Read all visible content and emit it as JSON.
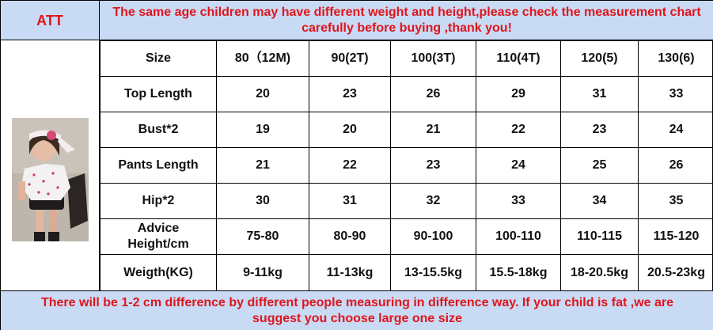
{
  "header": {
    "brand": "ATT",
    "notice": "The same age children may have different weight and height,please check the measurement chart carefully before buying ,thank you!"
  },
  "table": {
    "columns": [
      "Size",
      "80（12M)",
      "90(2T)",
      "100(3T)",
      "110(4T)",
      "120(5)",
      "130(6)"
    ],
    "rows": [
      {
        "label": "Top Length",
        "values": [
          "20",
          "23",
          "26",
          "29",
          "31",
          "33"
        ]
      },
      {
        "label": "Bust*2",
        "values": [
          "19",
          "20",
          "21",
          "22",
          "23",
          "24"
        ]
      },
      {
        "label": "Pants Length",
        "values": [
          "21",
          "22",
          "23",
          "24",
          "25",
          "26"
        ]
      },
      {
        "label": "Hip*2",
        "values": [
          "30",
          "31",
          "32",
          "33",
          "34",
          "35"
        ]
      },
      {
        "label_line1": "Advice",
        "label_line2": "Height/cm",
        "values": [
          "75-80",
          "80-90",
          "90-100",
          "100-110",
          "110-115",
          "115-120"
        ]
      },
      {
        "label": "Weigth(KG)",
        "values": [
          "9-11kg",
          "11-13kg",
          "13-15.5kg",
          "15.5-18kg",
          "18-20.5kg",
          "20.5-23kg"
        ]
      }
    ]
  },
  "footer": {
    "note": "There will be 1-2 cm difference by different people measuring in difference way. If your child is fat ,we are suggest you choose large one size"
  },
  "colors": {
    "banner_bg": "#c9daf4",
    "accent_text": "#e0151b"
  },
  "photo": {
    "icon": "child-model-photo"
  }
}
